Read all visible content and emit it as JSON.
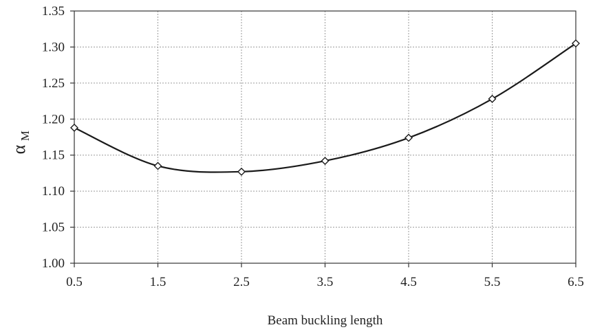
{
  "chart_data": {
    "type": "line",
    "title": "",
    "xlabel": "Beam buckling length",
    "ylabel": {
      "main": "α",
      "sub": "M"
    },
    "xlim": [
      0.5,
      6.5
    ],
    "ylim": [
      1.0,
      1.35
    ],
    "x_ticks": [
      "0.5",
      "1.5",
      "2.5",
      "3.5",
      "4.5",
      "5.5",
      "6.5"
    ],
    "y_ticks": [
      "1.00",
      "1.05",
      "1.10",
      "1.15",
      "1.20",
      "1.25",
      "1.30",
      "1.35"
    ],
    "x_tick_values": [
      0.5,
      1.5,
      2.5,
      3.5,
      4.5,
      5.5,
      6.5
    ],
    "y_tick_values": [
      1.0,
      1.05,
      1.1,
      1.15,
      1.2,
      1.25,
      1.3,
      1.35
    ],
    "grid": true,
    "legend": "none",
    "series": [
      {
        "x": [
          0.5,
          1.5,
          2.5,
          3.5,
          4.5,
          5.5,
          6.5
        ],
        "y": [
          1.188,
          1.135,
          1.127,
          1.142,
          1.174,
          1.228,
          1.305
        ],
        "color": "#1a1a1a",
        "marker": "diamond"
      }
    ]
  }
}
